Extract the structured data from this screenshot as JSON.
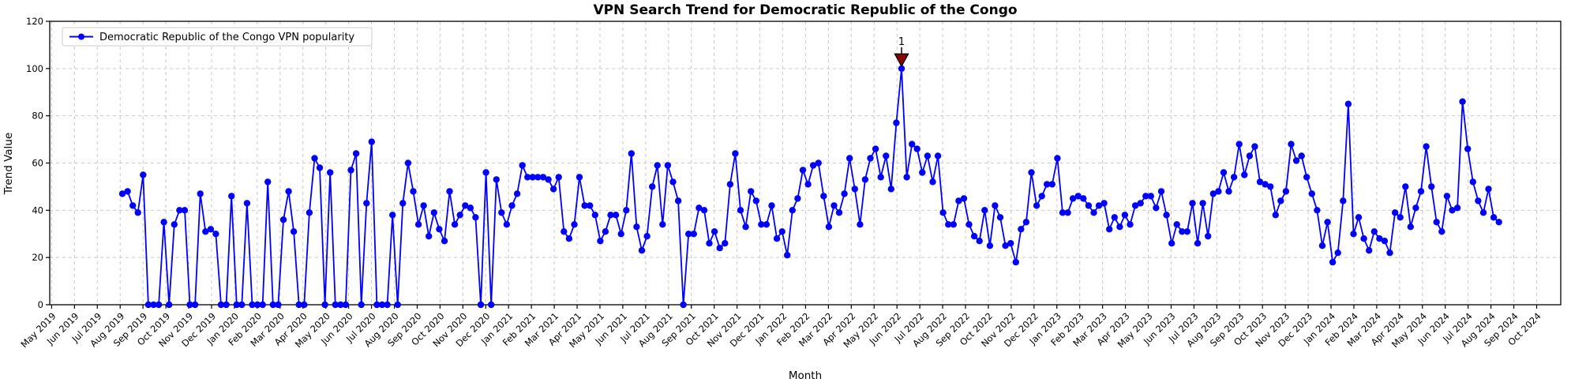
{
  "chart_data": {
    "type": "line",
    "title": "VPN Search Trend for Democratic Republic of the Congo",
    "xlabel": "Month",
    "ylabel": "Trend Value",
    "ylim": [
      0,
      120
    ],
    "yticks": [
      0,
      20,
      40,
      60,
      80,
      100,
      120
    ],
    "grid": true,
    "grid_style": "dashed",
    "legend": {
      "label": "Democratic Republic of the Congo VPN popularity",
      "position": "upper left"
    },
    "colors": {
      "line": "#0000ff",
      "marker": "#0000ff",
      "annotation": "#8b0000",
      "annotation_edge": "#000000",
      "grid": "#c9c9c9",
      "spine": "#000000",
      "background": "#ffffff"
    },
    "x_tick_labels": [
      "May 2019",
      "Jun 2019",
      "Jul 2019",
      "Aug 2019",
      "Sep 2019",
      "Oct 2019",
      "Nov 2019",
      "Dec 2019",
      "Jan 2020",
      "Feb 2020",
      "Mar 2020",
      "Apr 2020",
      "May 2020",
      "Jun 2020",
      "Jul 2020",
      "Aug 2020",
      "Sep 2020",
      "Oct 2020",
      "Nov 2020",
      "Dec 2020",
      "Jan 2021",
      "Feb 2021",
      "Mar 2021",
      "Apr 2021",
      "May 2021",
      "Jun 2021",
      "Jul 2021",
      "Aug 2021",
      "Sep 2021",
      "Oct 2021",
      "Nov 2021",
      "Dec 2021",
      "Jan 2022",
      "Feb 2022",
      "Mar 2022",
      "Apr 2022",
      "May 2022",
      "Jun 2022",
      "Jul 2022",
      "Aug 2022",
      "Sep 2022",
      "Oct 2022",
      "Nov 2022",
      "Dec 2022",
      "Jan 2023",
      "Feb 2023",
      "Mar 2023",
      "Apr 2023",
      "May 2023",
      "Jun 2023",
      "Jul 2023",
      "Aug 2023",
      "Sep 2023",
      "Oct 2023",
      "Nov 2023",
      "Dec 2023",
      "Jan 2024",
      "Feb 2024",
      "Mar 2024",
      "Apr 2024",
      "May 2024",
      "Jun 2024",
      "Jul 2024",
      "Aug 2024",
      "Sep 2024",
      "Oct 2024"
    ],
    "series": [
      {
        "name": "Democratic Republic of the Congo VPN popularity",
        "start_label": "Aug 2019",
        "start_month_index": 3,
        "cadence": "weekly",
        "values": [
          47,
          48,
          42,
          39,
          55,
          0,
          0,
          0,
          35,
          0,
          34,
          40,
          40,
          0,
          0,
          47,
          31,
          32,
          30,
          0,
          0,
          46,
          0,
          0,
          43,
          0,
          0,
          0,
          52,
          0,
          0,
          36,
          48,
          31,
          0,
          0,
          39,
          62,
          58,
          0,
          56,
          0,
          0,
          0,
          57,
          64,
          0,
          43,
          69,
          0,
          0,
          0,
          38,
          0,
          43,
          60,
          48,
          34,
          42,
          29,
          39,
          32,
          27,
          48,
          34,
          38,
          42,
          41,
          37,
          0,
          56,
          0,
          53,
          39,
          34,
          42,
          47,
          59,
          54,
          54,
          54,
          54,
          53,
          49,
          54,
          31,
          28,
          34,
          54,
          42,
          42,
          38,
          27,
          31,
          38,
          38,
          30,
          40,
          64,
          33,
          23,
          29,
          50,
          59,
          34,
          59,
          52,
          44,
          0,
          30,
          30,
          41,
          40,
          26,
          31,
          24,
          26,
          51,
          64,
          40,
          33,
          48,
          44,
          34,
          34,
          42,
          28,
          31,
          21,
          40,
          45,
          57,
          51,
          59,
          60,
          46,
          33,
          42,
          39,
          47,
          62,
          49,
          34,
          53,
          62,
          66,
          54,
          63,
          49,
          77,
          100,
          54,
          68,
          66,
          56,
          63,
          52,
          63,
          39,
          34,
          34,
          44,
          45,
          34,
          29,
          27,
          40,
          25,
          42,
          37,
          25,
          26,
          18,
          32,
          35,
          56,
          42,
          46,
          51,
          51,
          62,
          39,
          39,
          45,
          46,
          45,
          42,
          39,
          42,
          43,
          32,
          37,
          33,
          38,
          34,
          42,
          43,
          46,
          46,
          41,
          48,
          38,
          26,
          34,
          31,
          31,
          43,
          26,
          43,
          29,
          47,
          48,
          56,
          48,
          54,
          68,
          55,
          63,
          67,
          52,
          51,
          50,
          38,
          44,
          48,
          68,
          61,
          63,
          54,
          47,
          40,
          25,
          35,
          18,
          22,
          44,
          85,
          30,
          37,
          28,
          23,
          31,
          28,
          27,
          22,
          39,
          37,
          50,
          33,
          41,
          48,
          67,
          50,
          35,
          31,
          46,
          40,
          41,
          86,
          66,
          52,
          44,
          39,
          49,
          37,
          35
        ]
      }
    ],
    "annotations": [
      {
        "label": "1",
        "point_index": 150,
        "value": 100,
        "marker": "triangle-down",
        "color": "#8b0000"
      }
    ]
  }
}
